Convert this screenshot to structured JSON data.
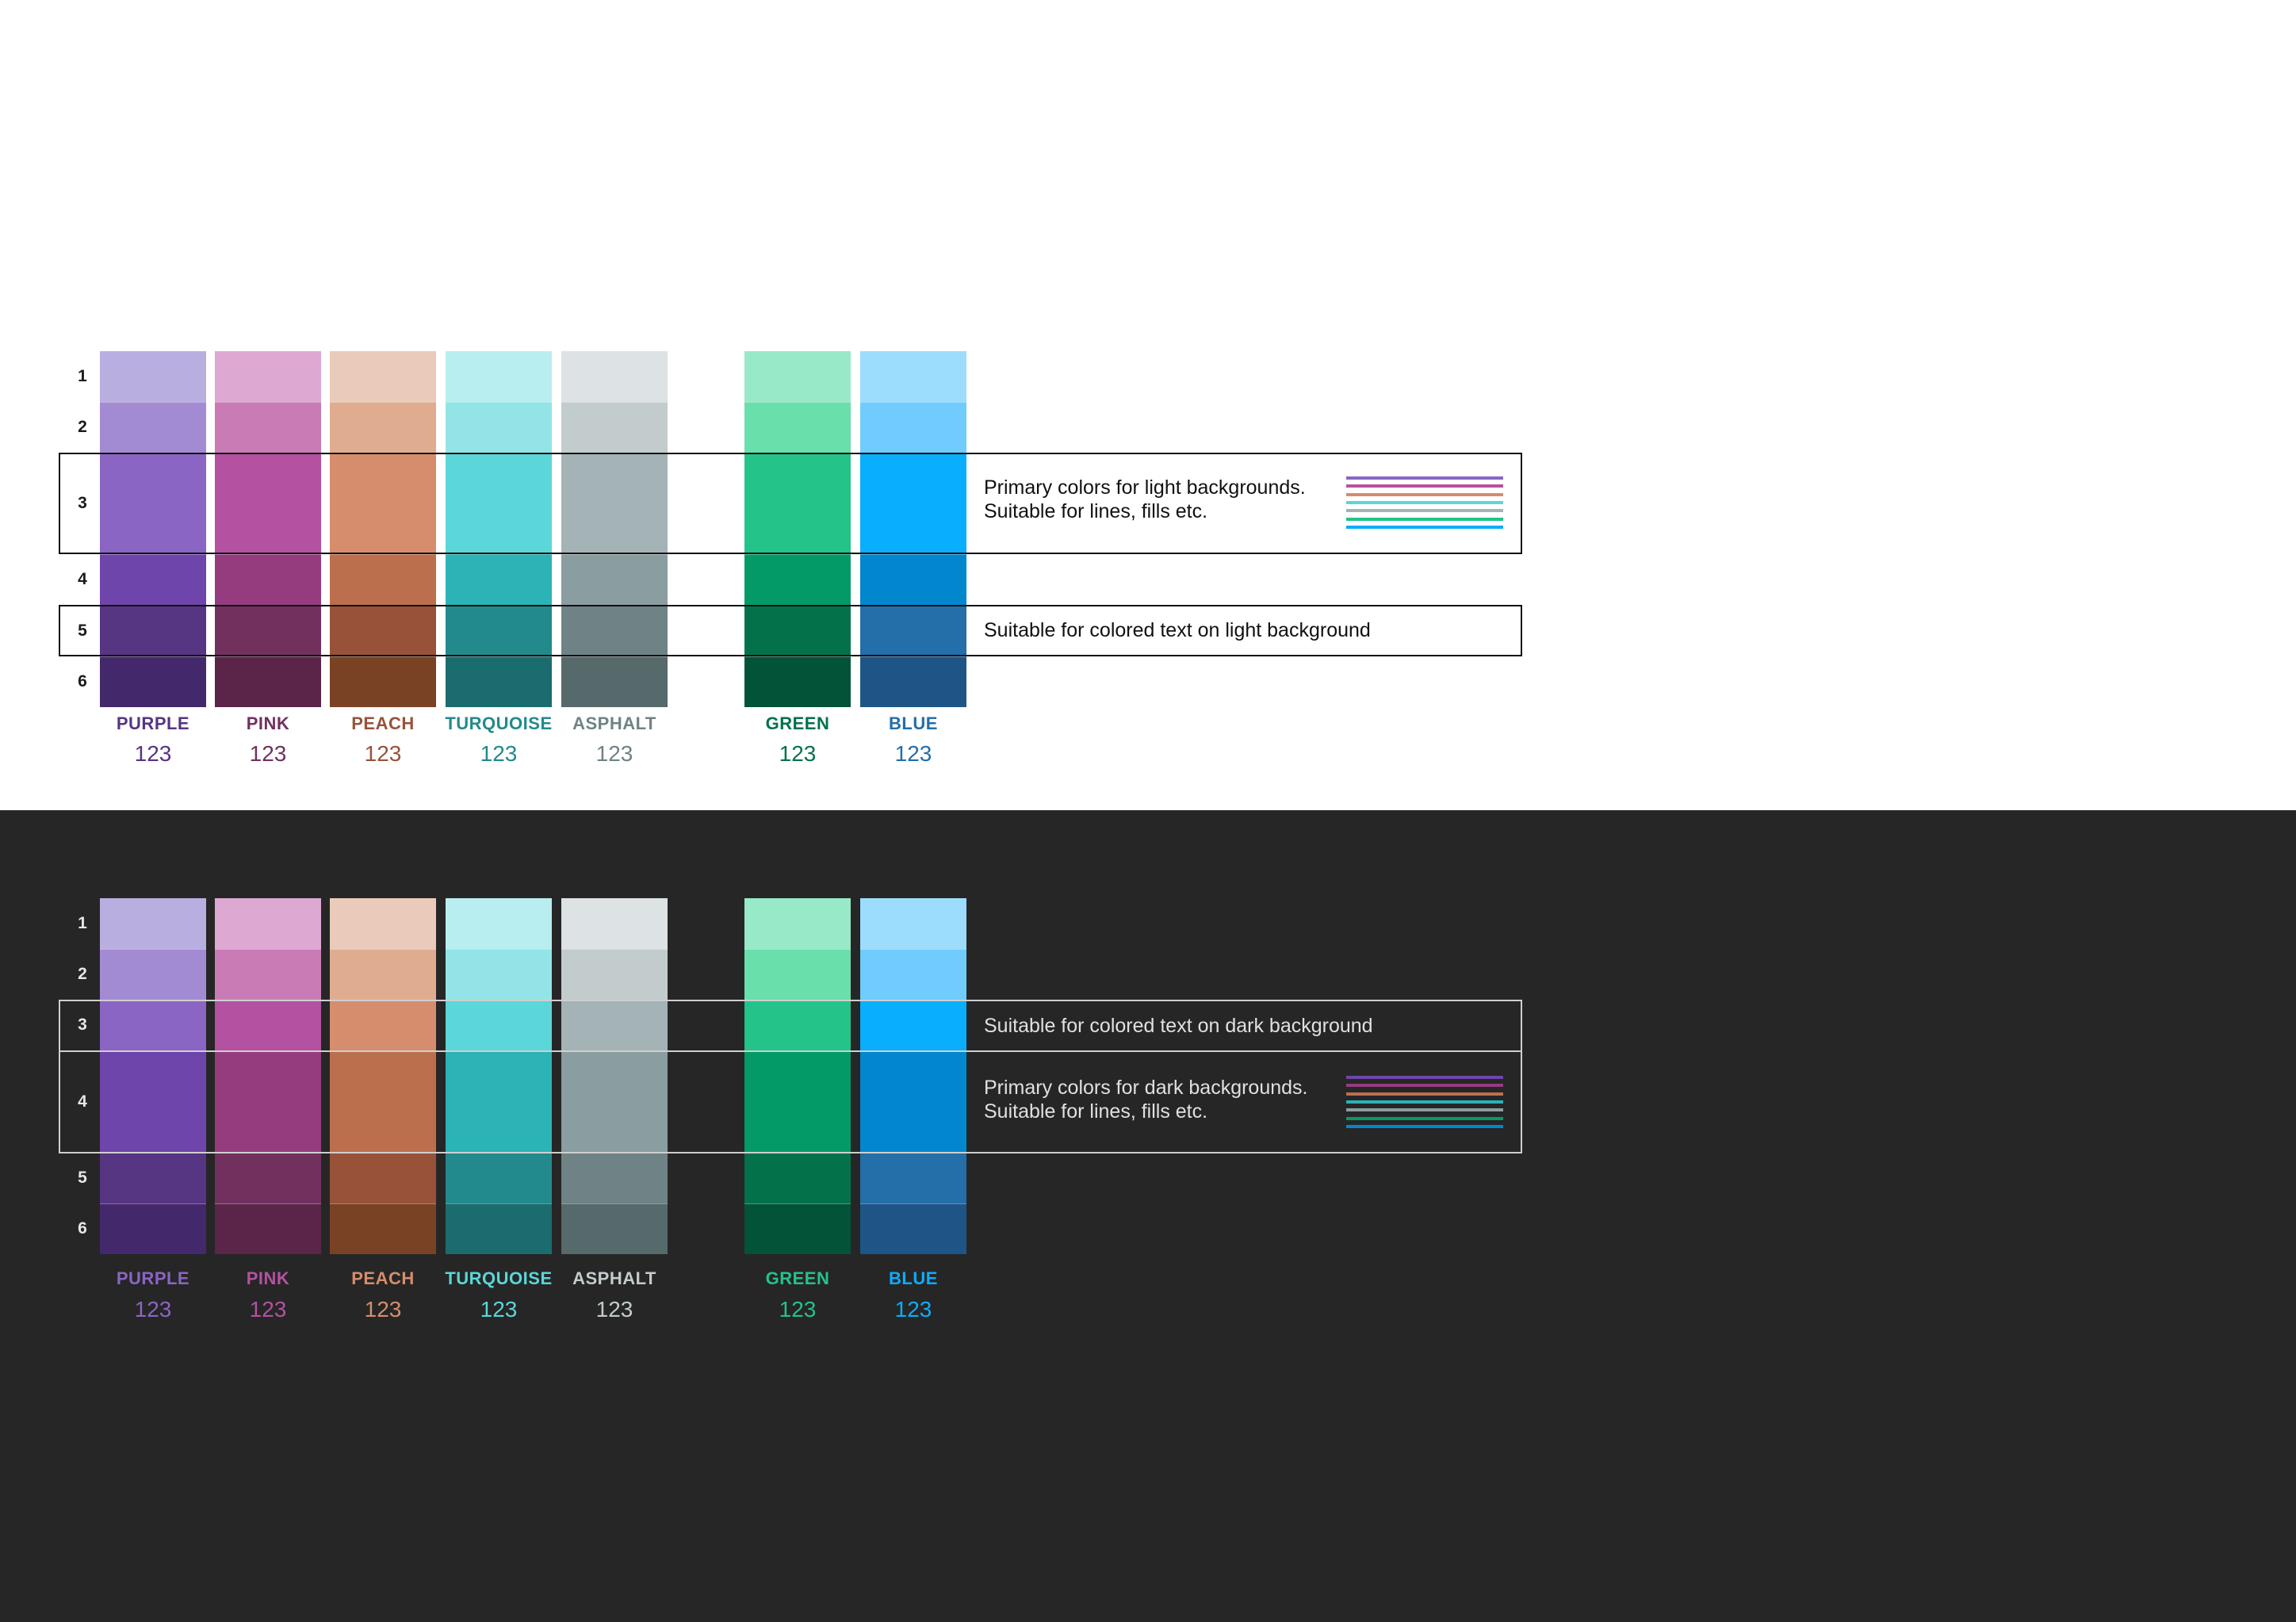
{
  "row_labels": [
    "1",
    "2",
    "3",
    "4",
    "5",
    "6"
  ],
  "palettes": [
    {
      "name": "PURPLE",
      "sample": "123",
      "shades": [
        "#b9aee0",
        "#a38bd3",
        "#8a65c4",
        "#6e45ab",
        "#563582",
        "#43296b"
      ]
    },
    {
      "name": "PINK",
      "sample": "123",
      "shades": [
        "#dda8d2",
        "#c97bb6",
        "#b551a1",
        "#953c7f",
        "#72305f",
        "#5a2549"
      ]
    },
    {
      "name": "PEACH",
      "sample": "123",
      "shades": [
        "#eacbbb",
        "#e0ac90",
        "#d68d6d",
        "#bc6f4d",
        "#985239",
        "#7a4224"
      ]
    },
    {
      "name": "TURQUOISE",
      "sample": "123",
      "shades": [
        "#b8eeef",
        "#93e4e6",
        "#5bd6d9",
        "#2bb3b6",
        "#228a8c",
        "#1b6c6e"
      ]
    },
    {
      "name": "ASPHALT",
      "sample": "123",
      "shades": [
        "#dde2e4",
        "#c3cccd",
        "#a4b3b5",
        "#8a9da0",
        "#6f8386",
        "#56696b"
      ]
    },
    {
      "name": "GREEN",
      "sample": "123",
      "shades": [
        "#97e9c8",
        "#69dfab",
        "#23c38a",
        "#049a67",
        "#03724b",
        "#035339"
      ]
    },
    {
      "name": "BLUE",
      "sample": "123",
      "shades": [
        "#9cdcfd",
        "#6fccfd",
        "#09aefd",
        "#0287cf",
        "#246ea9",
        "#1e5587"
      ]
    }
  ],
  "light": {
    "label_colors": [
      "#563582",
      "#72305f",
      "#985239",
      "#228a8c",
      "#6f8386",
      "#03724b",
      "#246ea9"
    ],
    "notes": {
      "lines_note": "Primary colors for light backgrounds.\nSuitable for lines, fills etc.",
      "text_note": "Suitable for colored text on light background"
    },
    "sample_line_colors": [
      "#8a65c4",
      "#b551a1",
      "#d68d6d",
      "#5bd6d9",
      "#a4b3b5",
      "#23c38a",
      "#09aefd"
    ]
  },
  "dark": {
    "label_colors": [
      "#8a65c4",
      "#b551a1",
      "#d68d6d",
      "#5bd6d9",
      "#c3cccd",
      "#23c38a",
      "#09aefd"
    ],
    "notes": {
      "text_note": "Suitable for colored text on dark background",
      "lines_note": "Primary colors for dark backgrounds.\nSuitable for lines, fills etc."
    },
    "sample_line_colors": [
      "#6e45ab",
      "#953c7f",
      "#bc6f4d",
      "#2bb3b6",
      "#8a9da0",
      "#049a67",
      "#0287cf"
    ]
  }
}
